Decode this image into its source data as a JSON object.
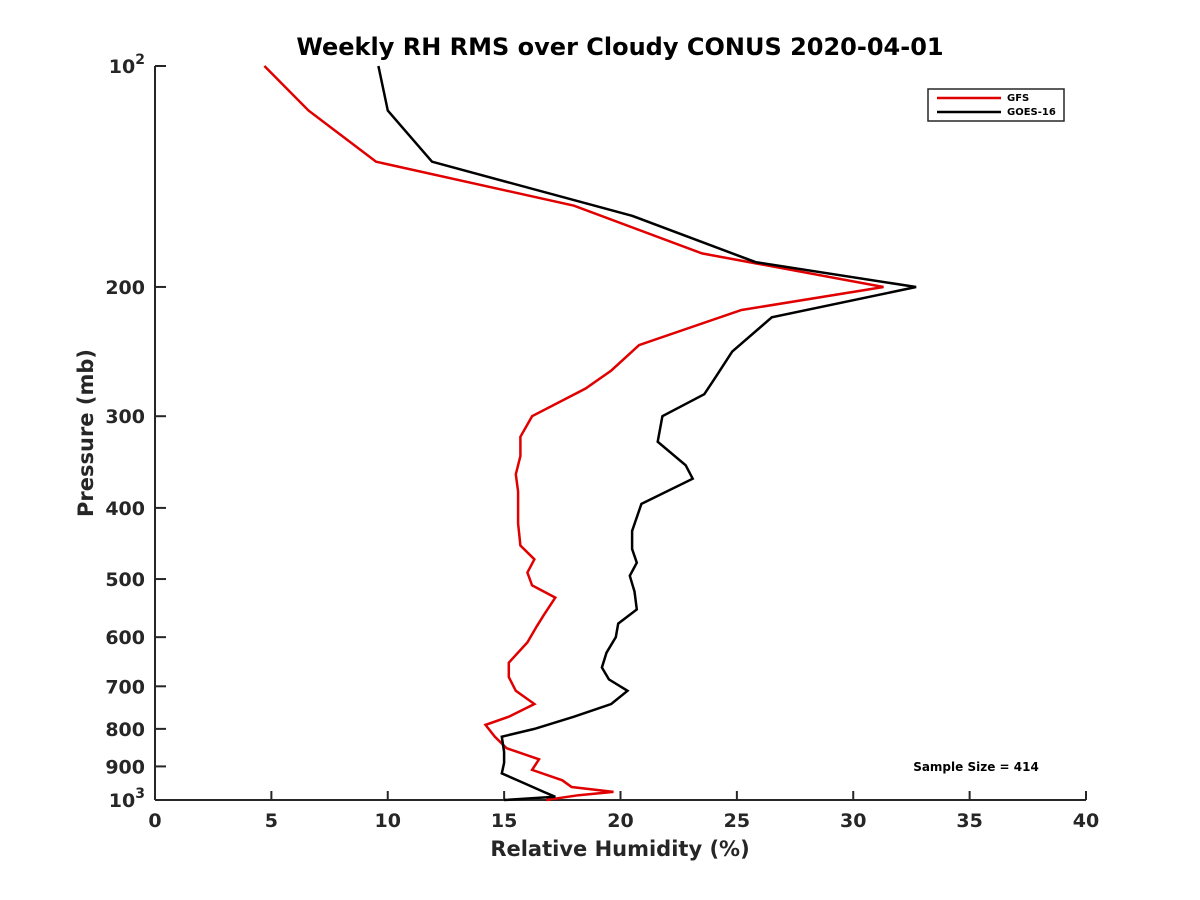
{
  "chart_data": {
    "type": "line",
    "title": "Weekly RH RMS over Cloudy CONUS 2020-04-01",
    "xlabel": "Relative Humidity (%)",
    "ylabel": "Pressure (mb)",
    "xlim": [
      0,
      40
    ],
    "ylim": [
      100,
      1000
    ],
    "yscale": "log",
    "y_reversed": true,
    "grid": false,
    "x_ticks": [
      "0",
      "5",
      "10",
      "15",
      "20",
      "25",
      "30",
      "35",
      "40"
    ],
    "y_ticks": [
      {
        "value": 100,
        "label": "10",
        "sup": "2"
      },
      {
        "value": 200,
        "label": "200",
        "sup": ""
      },
      {
        "value": 300,
        "label": "300",
        "sup": ""
      },
      {
        "value": 400,
        "label": "400",
        "sup": ""
      },
      {
        "value": 500,
        "label": "500",
        "sup": ""
      },
      {
        "value": 600,
        "label": "600",
        "sup": ""
      },
      {
        "value": 700,
        "label": "700",
        "sup": ""
      },
      {
        "value": 800,
        "label": "800",
        "sup": ""
      },
      {
        "value": 900,
        "label": "900",
        "sup": ""
      },
      {
        "value": 1000,
        "label": "10",
        "sup": "3"
      }
    ],
    "legend_position": "top-right",
    "series": [
      {
        "name": "GFS",
        "color": "#e00000",
        "points": [
          [
            4.7,
            100
          ],
          [
            6.6,
            115
          ],
          [
            9.5,
            135
          ],
          [
            18,
            155
          ],
          [
            23.5,
            180
          ],
          [
            31.3,
            200
          ],
          [
            25.2,
            215
          ],
          [
            20.8,
            240
          ],
          [
            19.6,
            260
          ],
          [
            18.5,
            275
          ],
          [
            16.2,
            300
          ],
          [
            15.7,
            320
          ],
          [
            15.7,
            340
          ],
          [
            15.5,
            360
          ],
          [
            15.6,
            380
          ],
          [
            15.6,
            400
          ],
          [
            15.6,
            420
          ],
          [
            15.7,
            450
          ],
          [
            16.3,
            470
          ],
          [
            16.0,
            490
          ],
          [
            16.2,
            510
          ],
          [
            17.2,
            530
          ],
          [
            16.7,
            560
          ],
          [
            16.4,
            580
          ],
          [
            16.0,
            610
          ],
          [
            15.2,
            650
          ],
          [
            15.2,
            680
          ],
          [
            15.5,
            710
          ],
          [
            16.3,
            740
          ],
          [
            15.2,
            770
          ],
          [
            14.2,
            790
          ],
          [
            14.6,
            820
          ],
          [
            15.1,
            850
          ],
          [
            16.5,
            880
          ],
          [
            16.2,
            910
          ],
          [
            17.5,
            940
          ],
          [
            17.9,
            960
          ],
          [
            19.7,
            975
          ],
          [
            18.2,
            985
          ],
          [
            16.8,
            1000
          ]
        ]
      },
      {
        "name": "GOES-16",
        "color": "#000000",
        "points": [
          [
            9.6,
            100
          ],
          [
            10.0,
            115
          ],
          [
            11.9,
            135
          ],
          [
            20.5,
            160
          ],
          [
            25.8,
            185
          ],
          [
            32.7,
            200
          ],
          [
            26.5,
            220
          ],
          [
            24.8,
            245
          ],
          [
            24.1,
            265
          ],
          [
            23.6,
            280
          ],
          [
            21.8,
            300
          ],
          [
            21.6,
            325
          ],
          [
            22.8,
            350
          ],
          [
            23.1,
            365
          ],
          [
            20.9,
            395
          ],
          [
            20.5,
            430
          ],
          [
            20.5,
            455
          ],
          [
            20.7,
            475
          ],
          [
            20.4,
            495
          ],
          [
            20.6,
            520
          ],
          [
            20.7,
            550
          ],
          [
            19.9,
            575
          ],
          [
            19.8,
            600
          ],
          [
            19.4,
            630
          ],
          [
            19.2,
            660
          ],
          [
            19.5,
            685
          ],
          [
            20.3,
            710
          ],
          [
            19.6,
            740
          ],
          [
            18.0,
            770
          ],
          [
            16.3,
            800
          ],
          [
            14.9,
            820
          ],
          [
            15.0,
            860
          ],
          [
            15.0,
            890
          ],
          [
            14.9,
            920
          ],
          [
            15.9,
            950
          ],
          [
            16.7,
            975
          ],
          [
            17.2,
            990
          ],
          [
            15.0,
            1000
          ]
        ]
      }
    ],
    "annotations": [
      {
        "text": "Sample Size = 414"
      }
    ]
  }
}
